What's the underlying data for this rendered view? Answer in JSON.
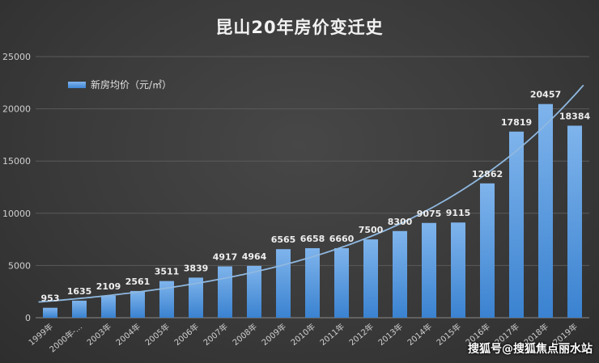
{
  "chart_data": {
    "type": "bar",
    "title": "昆山20年房价变迁史",
    "categories": [
      "1999年",
      "2000年-...",
      "2003年",
      "2004年",
      "2005年",
      "2006年",
      "2007年",
      "2008年",
      "2009年",
      "2010年",
      "2011年",
      "2012年",
      "2013年",
      "2014年",
      "2015年",
      "2016年",
      "2017年",
      "2018年",
      "2019年"
    ],
    "series": [
      {
        "name": "新房均价（元/㎡）",
        "values": [
          953,
          1635,
          2109,
          2561,
          3511,
          3839,
          4917,
          4964,
          6565,
          6658,
          6660,
          7500,
          8300,
          9075,
          9115,
          12862,
          17819,
          20457,
          18384
        ]
      }
    ],
    "trendline": {
      "type": "exponential",
      "color": "#8fb8e0"
    },
    "yticks": [
      0,
      5000,
      10000,
      15000,
      20000,
      25000
    ],
    "ylim": [
      0,
      25000
    ],
    "xlabel": "",
    "ylabel": "",
    "grid": true,
    "legend_position": "top-left",
    "colors": {
      "bar_top": "#7fb4ec",
      "bar_bottom": "#3a82d0",
      "label": "#eeeeee",
      "axis_text": "#cfcfcf"
    }
  },
  "watermark": "搜狐号@搜狐焦点丽水站"
}
